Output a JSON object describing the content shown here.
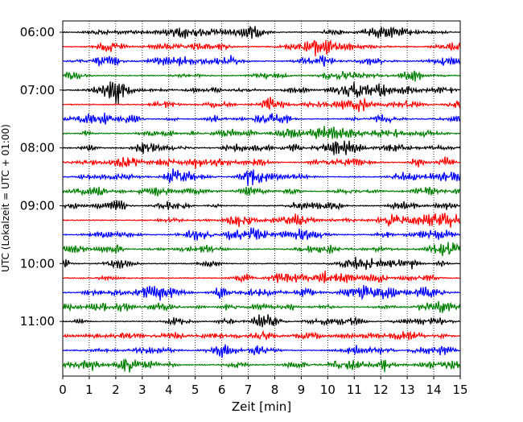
{
  "chart_data": {
    "type": "line",
    "title": "",
    "xlabel": "Zeit  [min]",
    "ylabel": "UTC (Lokalzeit = UTC + 01:00)",
    "xlim": [
      0,
      15
    ],
    "x_ticks": [
      "0",
      "1",
      "2",
      "3",
      "4",
      "5",
      "6",
      "7",
      "8",
      "9",
      "10",
      "11",
      "12",
      "13",
      "14",
      "15"
    ],
    "y_tick_labels": [
      "06:00",
      "07:00",
      "08:00",
      "09:00",
      "10:00",
      "11:00"
    ],
    "trace_start_times": [
      "06:00",
      "06:15",
      "06:30",
      "06:45",
      "07:00",
      "07:15",
      "07:30",
      "07:45",
      "08:00",
      "08:15",
      "08:30",
      "08:45",
      "09:00",
      "09:15",
      "09:30",
      "09:45",
      "10:00",
      "10:15",
      "10:30",
      "10:45",
      "11:00",
      "11:15",
      "11:30",
      "11:45"
    ],
    "trace_duration_min": 15,
    "trace_colors": [
      "#000000",
      "#ff0000",
      "#0000ff",
      "#008000"
    ],
    "grid": "vertical dotted lines at each minute",
    "legend": "none"
  }
}
